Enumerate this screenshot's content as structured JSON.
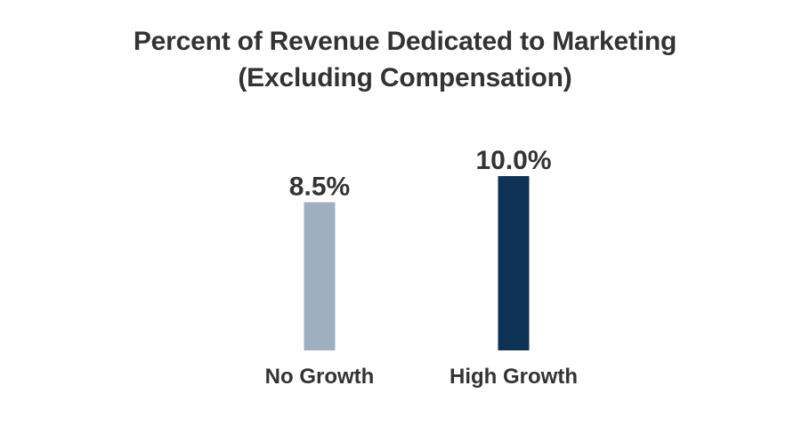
{
  "chart_data": {
    "type": "bar",
    "title": "Percent of Revenue Dedicated to Marketing",
    "subtitle": "(Excluding Compensation)",
    "categories": [
      "No Growth",
      "High Growth"
    ],
    "values": [
      8.5,
      10.0
    ],
    "data_labels": [
      "8.5%",
      "10.0%"
    ],
    "colors": [
      "#9eafc0",
      "#0f3357"
    ],
    "ylim": [
      0,
      10
    ],
    "grid": false,
    "legend": "none"
  }
}
